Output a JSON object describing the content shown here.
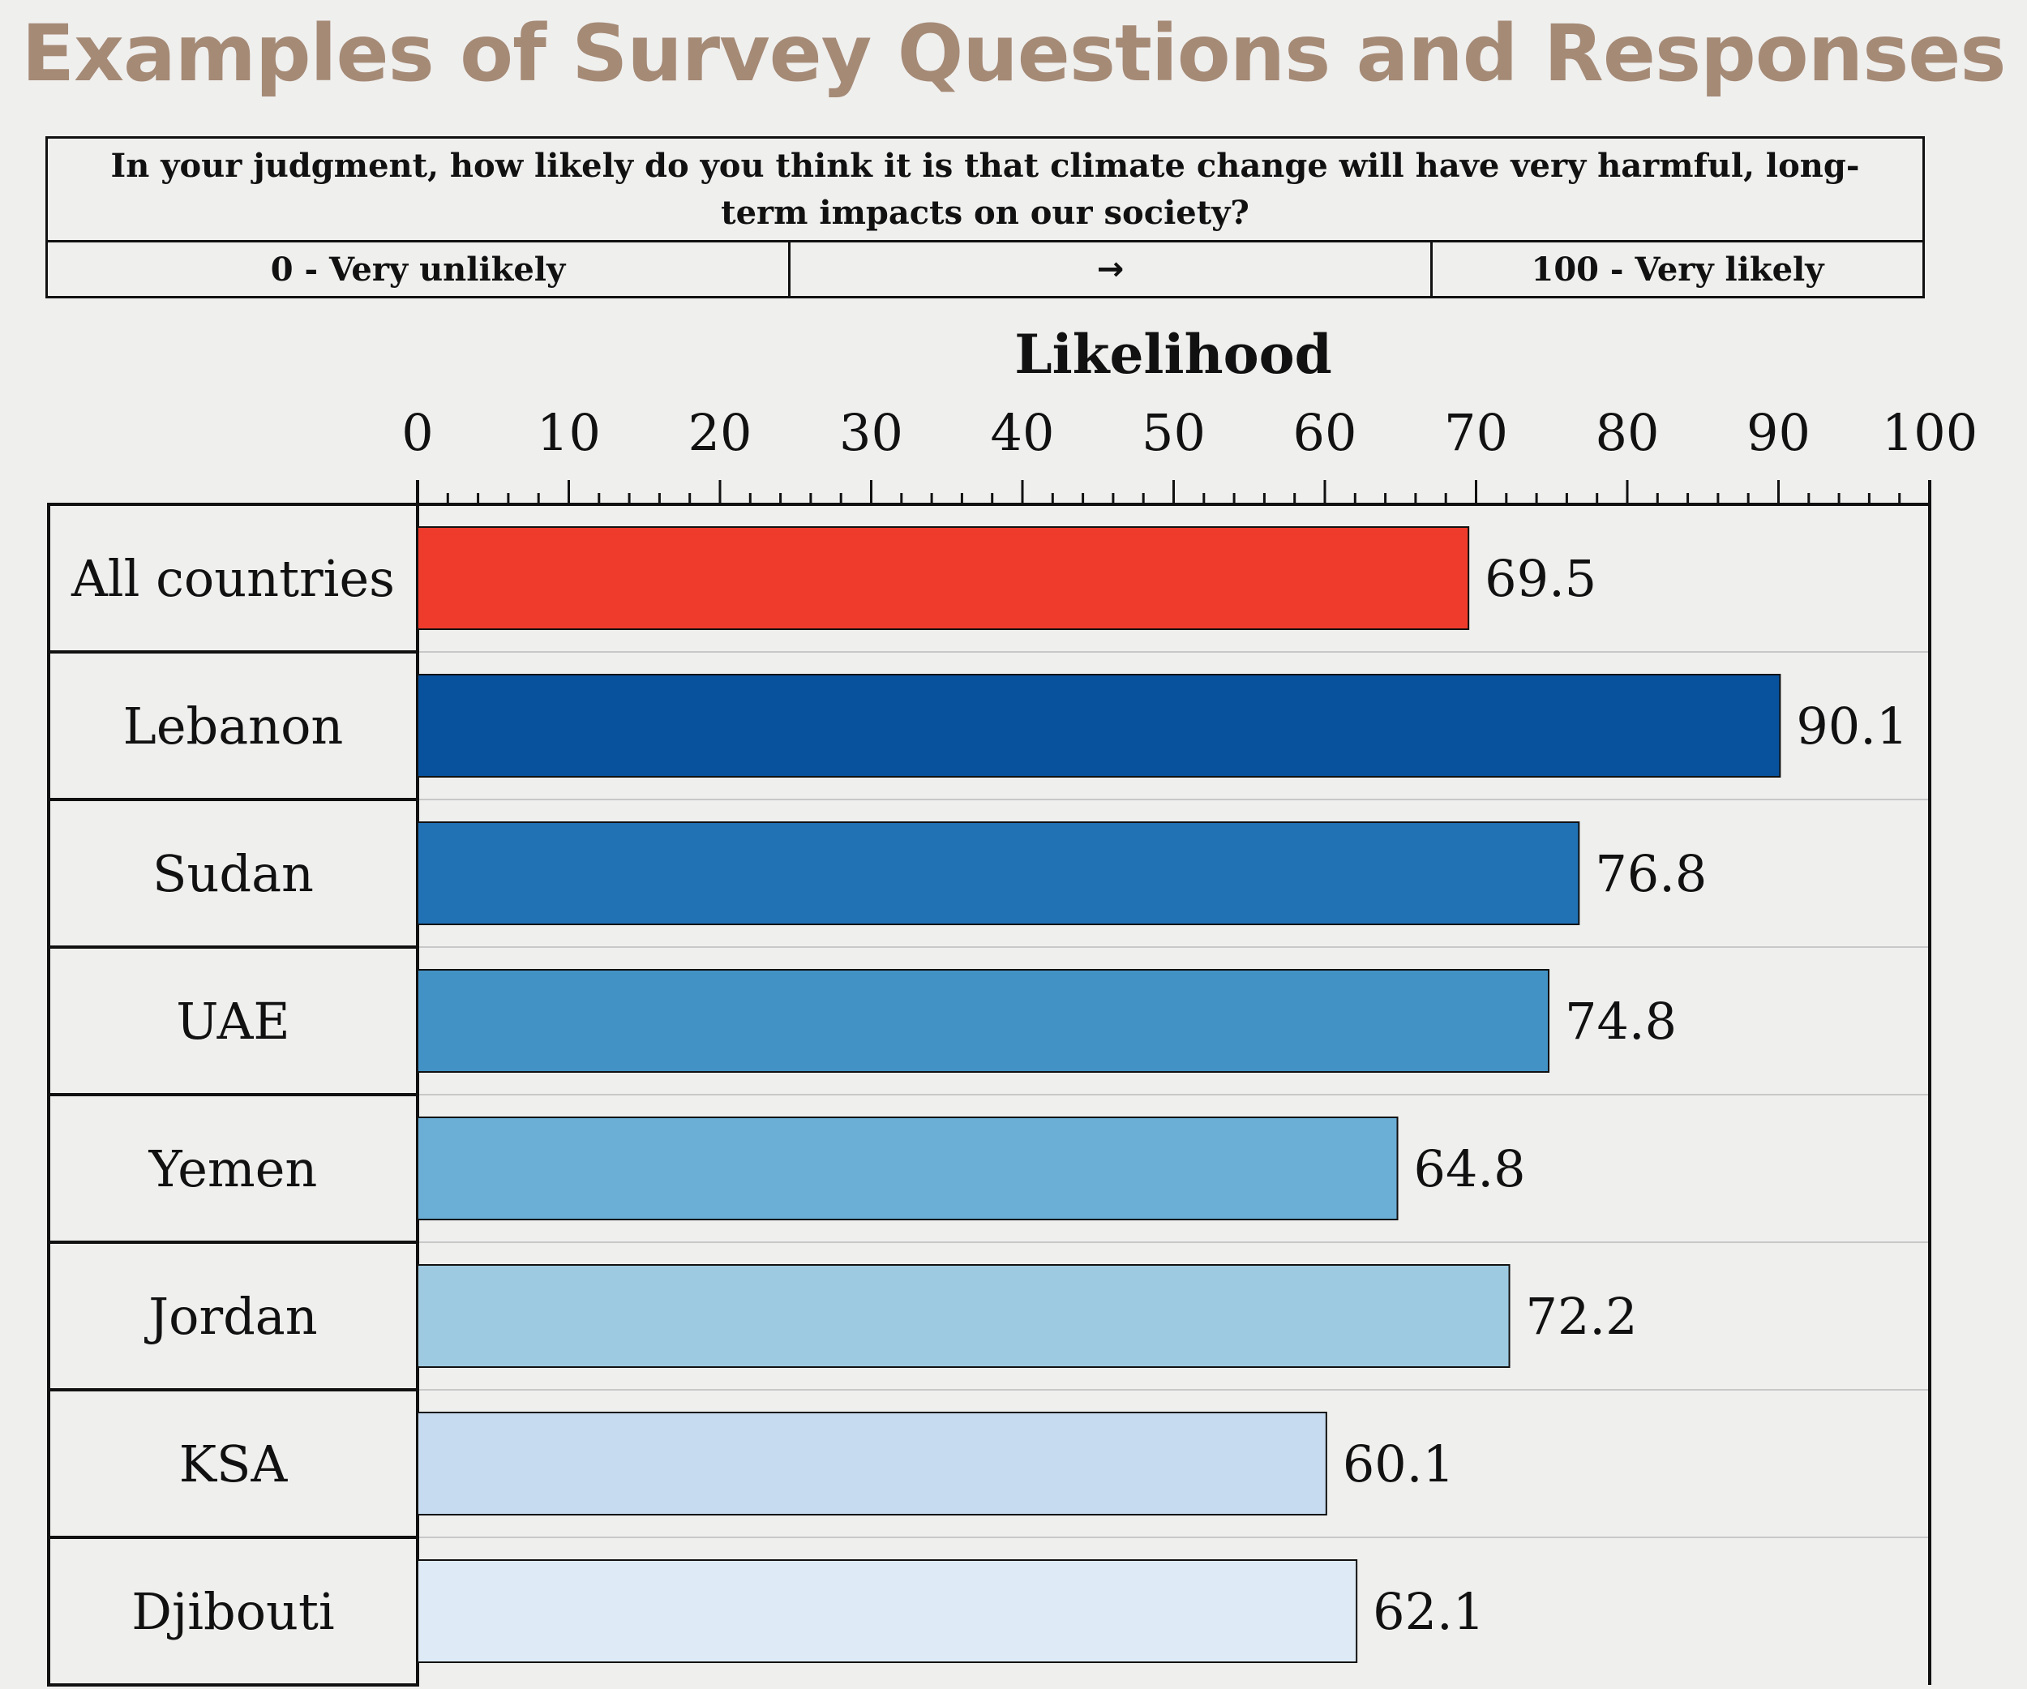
{
  "title": "Examples of Survey Questions and Responses",
  "question": {
    "text": "In your judgment, how likely do you think it is that climate change will have very harmful, long-term impacts on our society?",
    "scale_low": "0 - Very unlikely",
    "scale_arrow": "→",
    "scale_high": "100 - Very likely"
  },
  "chart_data": {
    "type": "bar",
    "orientation": "horizontal",
    "xlabel": "Likelihood",
    "xlim": [
      0,
      100
    ],
    "xticks": [
      0,
      10,
      20,
      30,
      40,
      50,
      60,
      70,
      80,
      90,
      100
    ],
    "axis_position": "top",
    "categories": [
      "All countries",
      "Lebanon",
      "Sudan",
      "UAE",
      "Yemen",
      "Jordan",
      "KSA",
      "Djibouti"
    ],
    "values": [
      69.5,
      90.1,
      76.8,
      74.8,
      64.8,
      72.2,
      60.1,
      62.1
    ],
    "value_labels": [
      "69.5",
      "90.1",
      "76.8",
      "74.8",
      "64.8",
      "72.2",
      "60.1",
      "62.1"
    ],
    "colors": [
      "#ef3b2c",
      "#08519c",
      "#2171b5",
      "#4292c6",
      "#6baed6",
      "#9ecae1",
      "#c6dbef",
      "#deebf7"
    ]
  }
}
